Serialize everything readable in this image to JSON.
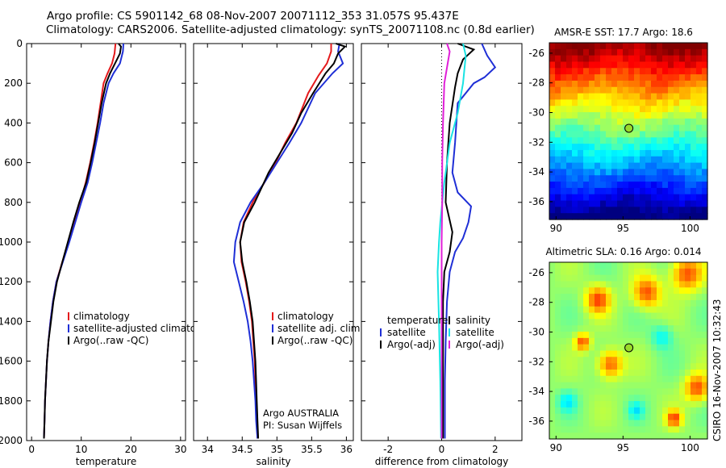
{
  "header": {
    "line1": "Argo profile: CS 5901142_68 08-Nov-2007 20071112_353 31.057S 95.437E",
    "line2": "Climatology: CARS2006. Satellite-adjusted climatology: synTS_20071108.nc (0.8d earlier)"
  },
  "credit": {
    "argo": "Argo AUSTRALIA",
    "pi": "PI: Susan Wijffels",
    "csiro": "CSIRO 16-Nov-2007 10:32:43"
  },
  "colors": {
    "climatology": "#e41a1c",
    "satellite": "#1f2fd6",
    "argo": "#000000",
    "satellite_salinity": "#19e3e3",
    "argo_adj_salinity": "#e020d8",
    "marker": "#9adb2a"
  },
  "chart_data": [
    {
      "type": "line",
      "id": "temperature",
      "xlabel": "temperature",
      "ylabel": "",
      "xlim": [
        -1,
        31
      ],
      "ylim": [
        2000,
        0
      ],
      "y_reversed": true,
      "xticks": [
        0,
        10,
        20,
        30
      ],
      "yticks": [
        0,
        200,
        400,
        600,
        800,
        1000,
        1200,
        1400,
        1600,
        1800,
        2000
      ],
      "legend": {
        "placement": "lower-left",
        "entries": [
          "climatology",
          "satellite-adjusted climatolog",
          "Argo(..raw -QC)"
        ]
      },
      "series": [
        {
          "name": "climatology",
          "color_key": "climatology",
          "points": [
            [
              16.9,
              0
            ],
            [
              16.7,
              50
            ],
            [
              16.2,
              100
            ],
            [
              15.3,
              150
            ],
            [
              14.5,
              200
            ],
            [
              13.9,
              300
            ],
            [
              13.3,
              400
            ],
            [
              12.6,
              500
            ],
            [
              11.8,
              600
            ],
            [
              10.9,
              700
            ],
            [
              9.8,
              800
            ],
            [
              8.6,
              900
            ],
            [
              7.4,
              1000
            ],
            [
              6.2,
              1100
            ],
            [
              5.0,
              1200
            ],
            [
              4.3,
              1300
            ],
            [
              3.8,
              1400
            ],
            [
              3.4,
              1500
            ],
            [
              3.1,
              1600
            ],
            [
              2.9,
              1700
            ],
            [
              2.7,
              1800
            ],
            [
              2.6,
              1900
            ],
            [
              2.5,
              1990
            ]
          ]
        },
        {
          "name": "satellite-adjusted climatolog",
          "color_key": "satellite",
          "points": [
            [
              18.5,
              0
            ],
            [
              18.4,
              40
            ],
            [
              17.8,
              100
            ],
            [
              16.5,
              150
            ],
            [
              15.5,
              200
            ],
            [
              14.5,
              300
            ],
            [
              13.8,
              400
            ],
            [
              13.0,
              500
            ],
            [
              12.2,
              600
            ],
            [
              11.3,
              700
            ],
            [
              10.0,
              800
            ],
            [
              8.8,
              900
            ],
            [
              7.6,
              1000
            ],
            [
              6.3,
              1100
            ],
            [
              5.0,
              1200
            ],
            [
              4.3,
              1300
            ],
            [
              3.8,
              1400
            ],
            [
              3.4,
              1500
            ],
            [
              3.1,
              1600
            ],
            [
              2.9,
              1700
            ],
            [
              2.7,
              1800
            ],
            [
              2.6,
              1900
            ],
            [
              2.5,
              1990
            ]
          ]
        },
        {
          "name": "Argo(..raw -QC)",
          "color_key": "argo",
          "points": [
            [
              17.5,
              0
            ],
            [
              18.0,
              15
            ],
            [
              17.8,
              50
            ],
            [
              16.8,
              100
            ],
            [
              15.8,
              150
            ],
            [
              15.0,
              200
            ],
            [
              14.1,
              300
            ],
            [
              13.4,
              400
            ],
            [
              12.7,
              500
            ],
            [
              11.9,
              600
            ],
            [
              11.0,
              700
            ],
            [
              9.6,
              800
            ],
            [
              8.4,
              900
            ],
            [
              7.3,
              1000
            ],
            [
              6.2,
              1100
            ],
            [
              5.1,
              1200
            ],
            [
              4.4,
              1300
            ],
            [
              3.9,
              1400
            ],
            [
              3.4,
              1500
            ],
            [
              3.1,
              1600
            ],
            [
              2.9,
              1700
            ],
            [
              2.7,
              1800
            ],
            [
              2.6,
              1900
            ],
            [
              2.5,
              1990
            ]
          ]
        }
      ]
    },
    {
      "type": "line",
      "id": "salinity",
      "xlabel": "salinity",
      "ylabel": "",
      "xlim": [
        33.8,
        36.1
      ],
      "ylim": [
        2000,
        0
      ],
      "y_reversed": true,
      "xticks": [
        34,
        34.5,
        35,
        35.5,
        36
      ],
      "legend": {
        "placement": "lower-left",
        "entries": [
          "climatology",
          "satellite adj. clim.",
          "Argo(..raw -QC)"
        ]
      },
      "series": [
        {
          "name": "climatology",
          "color_key": "climatology",
          "points": [
            [
              35.78,
              0
            ],
            [
              35.78,
              40
            ],
            [
              35.72,
              100
            ],
            [
              35.6,
              160
            ],
            [
              35.45,
              250
            ],
            [
              35.28,
              400
            ],
            [
              35.12,
              500
            ],
            [
              34.98,
              600
            ],
            [
              34.82,
              700
            ],
            [
              34.65,
              800
            ],
            [
              34.52,
              900
            ],
            [
              34.47,
              1000
            ],
            [
              34.49,
              1100
            ],
            [
              34.55,
              1200
            ],
            [
              34.6,
              1300
            ],
            [
              34.64,
              1400
            ],
            [
              34.66,
              1500
            ],
            [
              34.68,
              1600
            ],
            [
              34.69,
              1700
            ],
            [
              34.7,
              1800
            ],
            [
              34.71,
              1900
            ],
            [
              34.72,
              1990
            ]
          ]
        },
        {
          "name": "satellite adj. clim.",
          "color_key": "satellite",
          "points": [
            [
              35.9,
              0
            ],
            [
              35.88,
              40
            ],
            [
              35.95,
              100
            ],
            [
              35.8,
              150
            ],
            [
              35.55,
              250
            ],
            [
              35.35,
              400
            ],
            [
              35.18,
              500
            ],
            [
              35.0,
              600
            ],
            [
              34.82,
              700
            ],
            [
              34.62,
              800
            ],
            [
              34.47,
              900
            ],
            [
              34.4,
              1000
            ],
            [
              34.38,
              1100
            ],
            [
              34.45,
              1200
            ],
            [
              34.52,
              1300
            ],
            [
              34.58,
              1400
            ],
            [
              34.62,
              1500
            ],
            [
              34.65,
              1600
            ],
            [
              34.67,
              1700
            ],
            [
              34.69,
              1800
            ],
            [
              34.7,
              1900
            ],
            [
              34.72,
              1990
            ]
          ]
        },
        {
          "name": "Argo(..raw -QC)",
          "color_key": "argo",
          "points": [
            [
              35.85,
              0
            ],
            [
              35.98,
              15
            ],
            [
              35.88,
              50
            ],
            [
              35.82,
              100
            ],
            [
              35.7,
              150
            ],
            [
              35.52,
              250
            ],
            [
              35.35,
              350
            ],
            [
              35.22,
              450
            ],
            [
              35.05,
              550
            ],
            [
              34.88,
              650
            ],
            [
              34.68,
              800
            ],
            [
              34.53,
              900
            ],
            [
              34.47,
              1000
            ],
            [
              34.5,
              1100
            ],
            [
              34.56,
              1200
            ],
            [
              34.61,
              1300
            ],
            [
              34.65,
              1400
            ],
            [
              34.67,
              1500
            ],
            [
              34.69,
              1600
            ],
            [
              34.7,
              1700
            ],
            [
              34.71,
              1800
            ],
            [
              34.72,
              1900
            ],
            [
              34.73,
              1990
            ]
          ]
        }
      ]
    },
    {
      "type": "line",
      "id": "difference",
      "xlabel": "difference from climatology",
      "ylabel": "",
      "xlim": [
        -3,
        3
      ],
      "ylim": [
        2000,
        0
      ],
      "y_reversed": true,
      "xticks": [
        -2,
        0,
        2
      ],
      "zero_line": 0,
      "legend_left": {
        "placement": "lower-left",
        "entries": [
          "temperature",
          "satellite",
          "Argo(-adj)"
        ]
      },
      "legend_right": {
        "placement": "lower-right",
        "entries": [
          "salinity",
          "satellite",
          "Argo(-adj)"
        ]
      },
      "series": [
        {
          "name": "satellite",
          "group": "temperature",
          "color_key": "satellite",
          "points": [
            [
              1.5,
              0
            ],
            [
              1.7,
              60
            ],
            [
              2.0,
              120
            ],
            [
              1.6,
              170
            ],
            [
              1.2,
              200
            ],
            [
              0.6,
              300
            ],
            [
              0.5,
              500
            ],
            [
              0.4,
              650
            ],
            [
              0.6,
              750
            ],
            [
              1.1,
              820
            ],
            [
              1.0,
              900
            ],
            [
              0.8,
              980
            ],
            [
              0.5,
              1050
            ],
            [
              0.3,
              1150
            ],
            [
              0.2,
              1300
            ],
            [
              0.15,
              1500
            ],
            [
              0.12,
              1700
            ],
            [
              0.12,
              1990
            ]
          ]
        },
        {
          "name": "Argo(-adj)",
          "group": "temperature",
          "color_key": "argo",
          "points": [
            [
              0.6,
              0
            ],
            [
              1.2,
              30
            ],
            [
              0.8,
              80
            ],
            [
              0.6,
              150
            ],
            [
              0.5,
              220
            ],
            [
              0.3,
              400
            ],
            [
              0.2,
              600
            ],
            [
              0.15,
              800
            ],
            [
              0.4,
              950
            ],
            [
              0.3,
              1050
            ],
            [
              0.1,
              1150
            ],
            [
              0.05,
              1300
            ],
            [
              0.05,
              1500
            ],
            [
              0.05,
              1700
            ],
            [
              0.05,
              1990
            ]
          ]
        },
        {
          "name": "satellite",
          "group": "salinity",
          "color_key": "satellite_salinity",
          "points": [
            [
              0.8,
              0
            ],
            [
              0.9,
              60
            ],
            [
              0.8,
              200
            ],
            [
              0.6,
              350
            ],
            [
              0.3,
              500
            ],
            [
              0.1,
              700
            ],
            [
              -0.05,
              900
            ],
            [
              -0.1,
              1000
            ],
            [
              -0.15,
              1150
            ],
            [
              -0.1,
              1400
            ],
            [
              -0.05,
              1700
            ],
            [
              -0.02,
              1990
            ]
          ]
        },
        {
          "name": "Argo(-adj)",
          "group": "salinity",
          "color_key": "argo_adj_salinity",
          "points": [
            [
              0.2,
              0
            ],
            [
              0.3,
              40
            ],
            [
              0.1,
              200
            ],
            [
              0.05,
              400
            ],
            [
              0.02,
              600
            ],
            [
              0.02,
              800
            ],
            [
              0.0,
              1000
            ],
            [
              0.0,
              1400
            ],
            [
              0.0,
              1990
            ]
          ]
        }
      ]
    },
    {
      "type": "heatmap",
      "id": "sst",
      "title": "AMSR-E SST: 17.7 Argo: 18.6",
      "xlim": [
        89.5,
        101.3
      ],
      "ylim": [
        -37.2,
        -25.3
      ],
      "xticks": [
        90,
        95,
        100
      ],
      "yticks": [
        -26,
        -28,
        -30,
        -32,
        -34,
        -36
      ],
      "marker": {
        "lon": 95.437,
        "lat": -31.057
      }
    },
    {
      "type": "heatmap",
      "id": "sla",
      "title": "Altimetric SLA: 0.16 Argo: 0.014",
      "xlim": [
        89.5,
        101.3
      ],
      "ylim": [
        -37.2,
        -25.3
      ],
      "xticks": [
        90,
        95,
        100
      ],
      "yticks": [
        -26,
        -28,
        -30,
        -32,
        -34,
        -36
      ],
      "marker": {
        "lon": 95.437,
        "lat": -31.057
      }
    }
  ]
}
